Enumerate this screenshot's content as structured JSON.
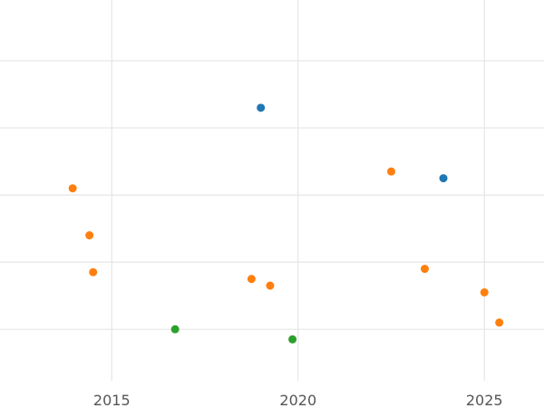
{
  "chart_data": {
    "type": "scatter",
    "title": "",
    "xlabel": "",
    "ylabel": "",
    "xlim": [
      2012.0,
      2026.6
    ],
    "ylim": [
      -0.7,
      4.5
    ],
    "x_ticks": [
      {
        "value": 2015,
        "label": "2015"
      },
      {
        "value": 2020,
        "label": "2020"
      },
      {
        "value": 2025,
        "label": "2025"
      }
    ],
    "y_gridlines": [
      0,
      1,
      2,
      3,
      4
    ],
    "y_tick_labels_visible": false,
    "grid": true,
    "legend": "none",
    "series": [
      {
        "color": "#1f77b4",
        "points": [
          {
            "x": 2019.0,
            "y": 3.3
          },
          {
            "x": 2023.9,
            "y": 2.25
          }
        ]
      },
      {
        "color": "#ff7f0e",
        "points": [
          {
            "x": 2013.95,
            "y": 2.1
          },
          {
            "x": 2014.4,
            "y": 1.4
          },
          {
            "x": 2014.5,
            "y": 0.85
          },
          {
            "x": 2018.75,
            "y": 0.75
          },
          {
            "x": 2019.25,
            "y": 0.65
          },
          {
            "x": 2022.5,
            "y": 2.35
          },
          {
            "x": 2023.4,
            "y": 0.9
          },
          {
            "x": 2025.0,
            "y": 0.55
          },
          {
            "x": 2025.4,
            "y": 0.1
          }
        ]
      },
      {
        "color": "#2ca02c",
        "points": [
          {
            "x": 2016.7,
            "y": 0.0
          },
          {
            "x": 2019.85,
            "y": -0.15
          }
        ]
      }
    ]
  }
}
